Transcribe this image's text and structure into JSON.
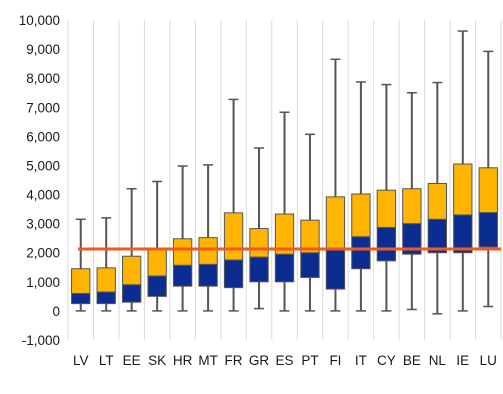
{
  "chart_data": {
    "type": "boxplot",
    "title": "",
    "xlabel": "",
    "ylabel": "",
    "ylim": [
      -1000,
      10000
    ],
    "y_ticks": [
      "-1,000",
      "0",
      "1,000",
      "2,000",
      "3,000",
      "4,000",
      "5,000",
      "6,000",
      "7,000",
      "8,000",
      "9,000",
      "10,000"
    ],
    "y_tick_values": [
      -1000,
      0,
      1000,
      2000,
      3000,
      4000,
      5000,
      6000,
      7000,
      8000,
      9000,
      10000
    ],
    "grid": "vertical",
    "categories": [
      "LV",
      "LT",
      "EE",
      "SK",
      "HR",
      "MT",
      "FR",
      "GR",
      "ES",
      "PT",
      "FI",
      "IT",
      "CY",
      "BE",
      "NL",
      "IE",
      "LU"
    ],
    "boxes": [
      {
        "min": 0,
        "q1": 250,
        "median": 600,
        "q3": 1450,
        "max": 3150
      },
      {
        "min": 0,
        "q1": 250,
        "median": 650,
        "q3": 1480,
        "max": 3200
      },
      {
        "min": 0,
        "q1": 300,
        "median": 900,
        "q3": 1880,
        "max": 4200
      },
      {
        "min": 0,
        "q1": 500,
        "median": 1200,
        "q3": 2100,
        "max": 4450
      },
      {
        "min": 0,
        "q1": 850,
        "median": 1570,
        "q3": 2480,
        "max": 4980
      },
      {
        "min": 0,
        "q1": 850,
        "median": 1600,
        "q3": 2520,
        "max": 5020
      },
      {
        "min": 0,
        "q1": 800,
        "median": 1750,
        "q3": 3370,
        "max": 7270
      },
      {
        "min": 80,
        "q1": 1000,
        "median": 1850,
        "q3": 2830,
        "max": 5600
      },
      {
        "min": 0,
        "q1": 1000,
        "median": 1950,
        "q3": 3330,
        "max": 6830
      },
      {
        "min": 0,
        "q1": 1150,
        "median": 2000,
        "q3": 3120,
        "max": 6070
      },
      {
        "min": 0,
        "q1": 750,
        "median": 2150,
        "q3": 3920,
        "max": 8650
      },
      {
        "min": 0,
        "q1": 1450,
        "median": 2550,
        "q3": 4020,
        "max": 7870
      },
      {
        "min": 0,
        "q1": 1720,
        "median": 2870,
        "q3": 4150,
        "max": 7780
      },
      {
        "min": 50,
        "q1": 1950,
        "median": 3000,
        "q3": 4200,
        "max": 7500
      },
      {
        "min": -100,
        "q1": 2000,
        "median": 3150,
        "q3": 4380,
        "max": 7850
      },
      {
        "min": 0,
        "q1": 2000,
        "median": 3300,
        "q3": 5050,
        "max": 9620
      },
      {
        "min": 150,
        "q1": 2200,
        "median": 3380,
        "q3": 4920,
        "max": 8920
      }
    ],
    "reference_line": 2130,
    "colors": {
      "lower_box": "#0b2d91",
      "upper_box": "#ffb400",
      "whisker": "#555555",
      "reference_line": "#f05a1e",
      "grid": "#d9d9d9"
    }
  }
}
